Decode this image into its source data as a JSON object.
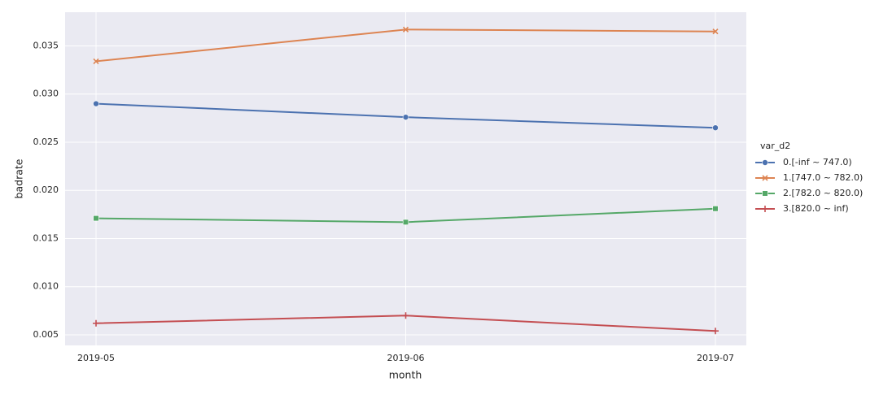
{
  "chart_data": {
    "type": "line",
    "x_label": "month",
    "y_label": "badrate",
    "categories": [
      "2019-05",
      "2019-06",
      "2019-07"
    ],
    "series": [
      {
        "name": "0.[-inf ~ 747.0)",
        "color": "#4c72b0",
        "marker": "circle",
        "values": [
          0.029,
          0.0276,
          0.0265
        ]
      },
      {
        "name": "1.[747.0 ~ 782.0)",
        "color": "#dd8452",
        "marker": "x",
        "values": [
          0.0334,
          0.0367,
          0.0365
        ]
      },
      {
        "name": "2.[782.0 ~ 820.0)",
        "color": "#55a868",
        "marker": "square",
        "values": [
          0.0171,
          0.0167,
          0.0181
        ]
      },
      {
        "name": "3.[820.0 ~ inf)",
        "color": "#c44e52",
        "marker": "plus",
        "values": [
          0.0062,
          0.007,
          0.0054
        ]
      }
    ],
    "legend_title": "var_d2",
    "legend_position": "right",
    "ylim": [
      0.0039,
      0.0385
    ],
    "yticks": [
      0.005,
      {
        "value": 0.01,
        "label": "0.010"
      },
      0.015,
      {
        "value": 0.02,
        "label": "0.020"
      },
      0.025,
      {
        "value": 0.03,
        "label": "0.030"
      },
      0.035
    ],
    "grid": true
  }
}
